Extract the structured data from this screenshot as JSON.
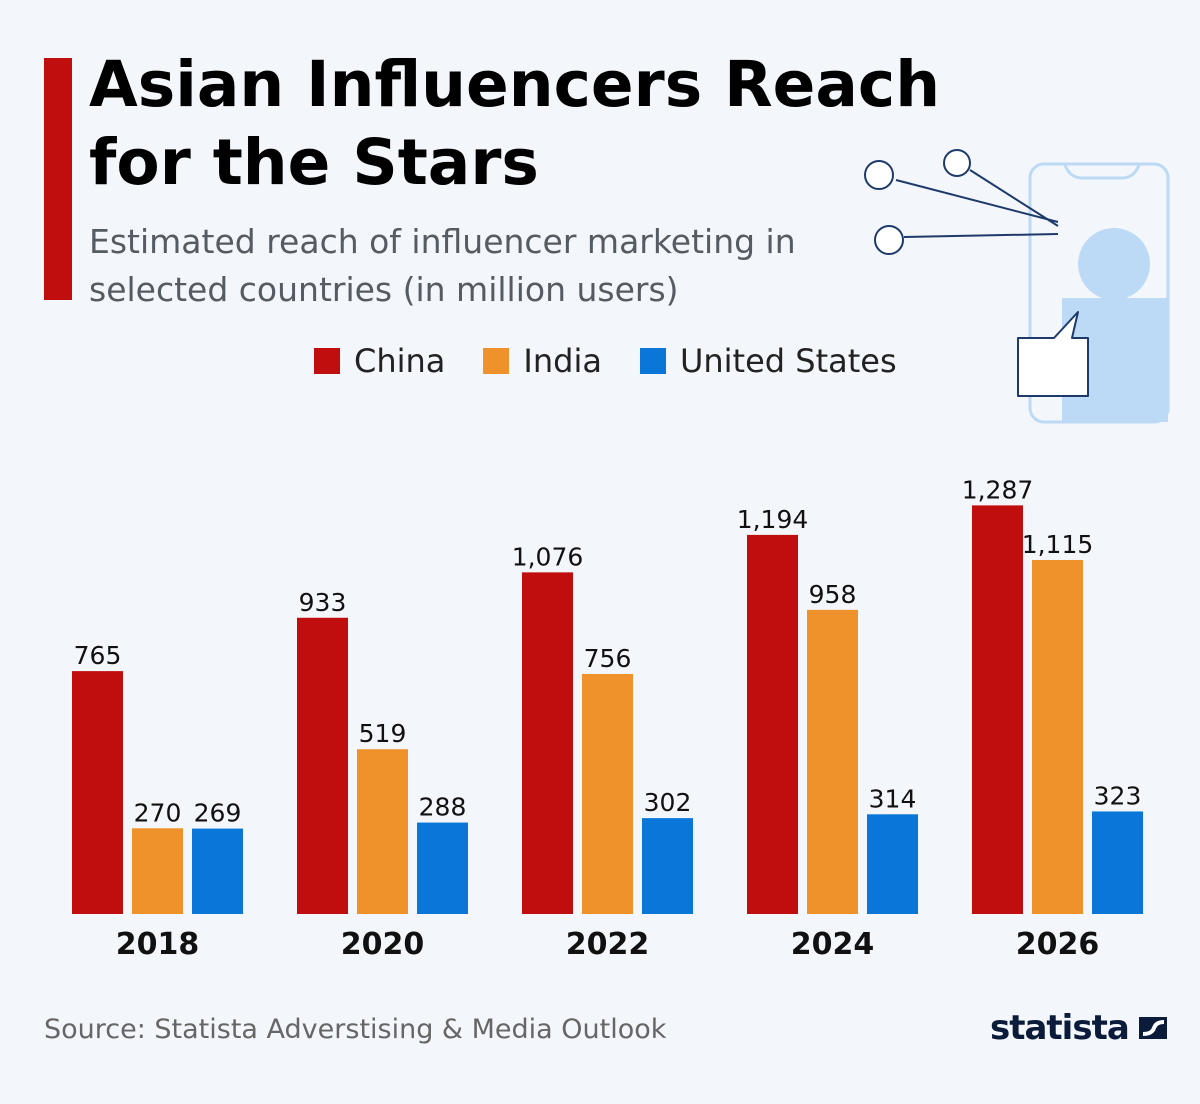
{
  "header": {
    "title": "Asian Influencers Reach for the Stars",
    "subtitle": "Estimated reach of influencer marketing in selected countries (in million users)"
  },
  "legend": [
    {
      "label": "China",
      "color": "#c00d0d"
    },
    {
      "label": "India",
      "color": "#f0922b"
    },
    {
      "label": "United States",
      "color": "#0a77d8"
    }
  ],
  "chart_data": {
    "type": "bar",
    "title": "Asian Influencers Reach for the Stars",
    "subtitle": "Estimated reach of influencer marketing in selected countries (in million users)",
    "categories": [
      "2018",
      "2020",
      "2022",
      "2024",
      "2026"
    ],
    "series": [
      {
        "name": "China",
        "color": "#c00d0d",
        "values": [
          765,
          933,
          1076,
          1194,
          1287
        ],
        "labels": [
          "765",
          "933",
          "1,076",
          "1,194",
          "1,287"
        ]
      },
      {
        "name": "India",
        "color": "#f0922b",
        "values": [
          270,
          519,
          756,
          958,
          1115
        ],
        "labels": [
          "270",
          "519",
          "756",
          "958",
          "1,115"
        ]
      },
      {
        "name": "United States",
        "color": "#0a77d8",
        "values": [
          269,
          288,
          302,
          314,
          323
        ],
        "labels": [
          "269",
          "288",
          "302",
          "314",
          "323"
        ]
      }
    ],
    "xlabel": "",
    "ylabel": "",
    "ylim": [
      0,
      1300
    ],
    "grid": false,
    "legend_position": "top"
  },
  "footer": {
    "source": "Source: Statista Adverstising & Media Outlook",
    "brand": "statista"
  },
  "icons": {
    "illustration": "smartphone-influencer-icon",
    "logo": "statista-logo-icon"
  }
}
